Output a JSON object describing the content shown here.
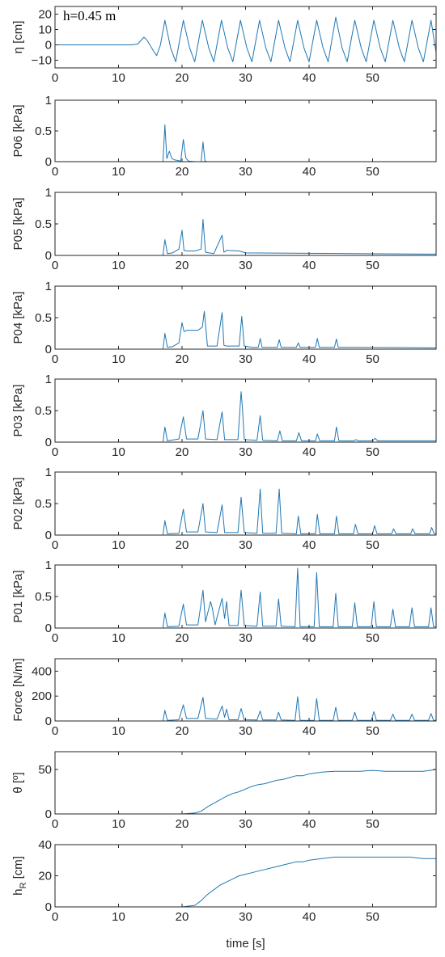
{
  "series_color": "#1f77b4",
  "chart_data": [
    {
      "type": "line",
      "ylabel": "η [cm]",
      "annotation": "h=0.45 m",
      "xlim": [
        0,
        60
      ],
      "ylim": [
        -15,
        25
      ],
      "xticks": [
        0,
        10,
        20,
        30,
        40,
        50
      ],
      "yticks": [
        -10,
        0,
        10,
        20
      ],
      "ytick_labels": [
        "−10",
        "0",
        "10",
        "20"
      ],
      "series": [
        {
          "x": [
            0,
            12,
            13,
            14,
            14.5,
            15.5,
            16,
            16.6,
            17.3,
            18.2,
            19,
            20.2,
            21.2,
            22,
            23.2,
            24.2,
            25,
            26.2,
            27.2,
            28,
            29.2,
            30.2,
            31,
            32.2,
            33.2,
            34,
            35.2,
            36.2,
            37,
            38.2,
            39.2,
            40,
            41.2,
            42.2,
            43,
            44.2,
            45.2,
            46,
            47.2,
            48.2,
            49,
            50.2,
            51.2,
            52,
            53.2,
            54.2,
            55,
            56.2,
            57.2,
            58,
            59.2,
            60
          ],
          "y": [
            0,
            0,
            0.5,
            5,
            3,
            -4,
            -7,
            0,
            16,
            -2,
            -11,
            16,
            -2,
            -11,
            16,
            -2,
            -11,
            16,
            -2,
            -11,
            16,
            -2,
            -11,
            16,
            -2,
            -11,
            16,
            -2,
            -11,
            16,
            -2,
            -11,
            16,
            -2,
            -11,
            18,
            -2,
            -11,
            16,
            -2,
            -11,
            16,
            -2,
            -11,
            16,
            -2,
            -11,
            16,
            -2,
            -11,
            16,
            -5
          ]
        }
      ]
    },
    {
      "type": "line",
      "ylabel": "P06  [kPa]",
      "xlim": [
        0,
        60
      ],
      "ylim": [
        0,
        1
      ],
      "xticks": [
        0,
        10,
        20,
        30,
        40,
        50
      ],
      "yticks": [
        0,
        0.5,
        1
      ],
      "ytick_labels": [
        "0",
        "0.5",
        "1"
      ],
      "series": [
        {
          "x": [
            0,
            17,
            17.3,
            17.6,
            18,
            18.4,
            18.8,
            19.3,
            19.8,
            20.2,
            20.6,
            21,
            22,
            23,
            23.3,
            23.6,
            24,
            60
          ],
          "y": [
            0,
            0,
            0.6,
            0.05,
            0.17,
            0.05,
            0.03,
            0.02,
            0.01,
            0.36,
            0.06,
            0.01,
            0,
            0,
            0.32,
            0.01,
            0,
            0
          ]
        }
      ]
    },
    {
      "type": "line",
      "ylabel": "P05  [kPa]",
      "xlim": [
        0,
        60
      ],
      "ylim": [
        0,
        1
      ],
      "xticks": [
        0,
        10,
        20,
        30,
        40,
        50
      ],
      "yticks": [
        0,
        0.5,
        1
      ],
      "ytick_labels": [
        "0",
        "0.5",
        "1"
      ],
      "series": [
        {
          "x": [
            0,
            17,
            17.3,
            17.7,
            18.5,
            19.5,
            20,
            20.3,
            20.8,
            22,
            23,
            23.3,
            23.7,
            25,
            26.3,
            26.6,
            27,
            29,
            30,
            60
          ],
          "y": [
            0,
            0,
            0.25,
            0.03,
            0.04,
            0.1,
            0.4,
            0.08,
            0.07,
            0.07,
            0.1,
            0.57,
            0.05,
            0.03,
            0.32,
            0.05,
            0.08,
            0.07,
            0.04,
            0.02
          ]
        }
      ]
    },
    {
      "type": "line",
      "ylabel": "P04  [kPa]",
      "xlim": [
        0,
        60
      ],
      "ylim": [
        0,
        1
      ],
      "xticks": [
        0,
        10,
        20,
        30,
        40,
        50
      ],
      "yticks": [
        0,
        0.5,
        1
      ],
      "ytick_labels": [
        "0",
        "0.5",
        "1"
      ],
      "series": [
        {
          "x": [
            0,
            17,
            17.3,
            17.7,
            18.5,
            19.5,
            20,
            20.3,
            20.8,
            22.5,
            23.2,
            23.5,
            24,
            25.5,
            26.3,
            26.6,
            27,
            29,
            29.4,
            29.8,
            31,
            32,
            32.3,
            32.6,
            35,
            35.3,
            35.6,
            38,
            38.3,
            38.6,
            41,
            41.3,
            41.6,
            44,
            44.3,
            44.6,
            48,
            60
          ],
          "y": [
            0,
            0,
            0.25,
            0.03,
            0.04,
            0.1,
            0.42,
            0.28,
            0.3,
            0.3,
            0.35,
            0.6,
            0.05,
            0.05,
            0.58,
            0.06,
            0.05,
            0.05,
            0.52,
            0.05,
            0.03,
            0.03,
            0.17,
            0.03,
            0.03,
            0.15,
            0.03,
            0.03,
            0.1,
            0.03,
            0.03,
            0.17,
            0.03,
            0.03,
            0.16,
            0.03,
            0.03,
            0.02
          ]
        }
      ]
    },
    {
      "type": "line",
      "ylabel": "P03  [kPa]",
      "xlim": [
        0,
        60
      ],
      "ylim": [
        0,
        1
      ],
      "xticks": [
        0,
        10,
        20,
        30,
        40,
        50
      ],
      "yticks": [
        0,
        0.5,
        1
      ],
      "ytick_labels": [
        "0",
        "0.5",
        "1"
      ],
      "series": [
        {
          "x": [
            0,
            17,
            17.3,
            17.7,
            19.5,
            20.2,
            20.7,
            22.5,
            23.3,
            23.7,
            25.5,
            26.3,
            26.7,
            28.8,
            29.3,
            29.5,
            29.8,
            31.8,
            32.3,
            32.7,
            35,
            35.4,
            35.8,
            38,
            38.4,
            38.8,
            41,
            41.3,
            41.7,
            44,
            44.3,
            44.7,
            47,
            47.4,
            47.8,
            50,
            50.4,
            50.8,
            60
          ],
          "y": [
            0,
            0,
            0.24,
            0.02,
            0.05,
            0.4,
            0.05,
            0.05,
            0.5,
            0.05,
            0.04,
            0.48,
            0.04,
            0.04,
            0.8,
            0.55,
            0.04,
            0.03,
            0.42,
            0.03,
            0.02,
            0.18,
            0.02,
            0.02,
            0.15,
            0.02,
            0.02,
            0.13,
            0.02,
            0.02,
            0.24,
            0.02,
            0.02,
            0.04,
            0.02,
            0.02,
            0.06,
            0.02,
            0.02
          ]
        }
      ]
    },
    {
      "type": "line",
      "ylabel": "P02  [kPa]",
      "xlim": [
        0,
        60
      ],
      "ylim": [
        0,
        1
      ],
      "xticks": [
        0,
        10,
        20,
        30,
        40,
        50
      ],
      "yticks": [
        0,
        0.5,
        1
      ],
      "ytick_labels": [
        "0",
        "0.5",
        "1"
      ],
      "series": [
        {
          "x": [
            0,
            17,
            17.3,
            17.7,
            19.5,
            20.2,
            20.7,
            22.5,
            23.3,
            23.7,
            25.5,
            26.3,
            26.7,
            28.8,
            29.3,
            29.8,
            31.8,
            32.3,
            32.7,
            34.8,
            35.3,
            35.7,
            38,
            38.3,
            38.7,
            41,
            41.3,
            41.7,
            44,
            44.3,
            44.7,
            47,
            47.3,
            47.7,
            50,
            50.3,
            50.7,
            53,
            53.3,
            53.7,
            56,
            56.3,
            56.7,
            59,
            59.3,
            59.7,
            60
          ],
          "y": [
            0,
            0,
            0.23,
            0.02,
            0.03,
            0.41,
            0.05,
            0.05,
            0.5,
            0.05,
            0.04,
            0.48,
            0.04,
            0.04,
            0.6,
            0.04,
            0.03,
            0.73,
            0.03,
            0.03,
            0.73,
            0.03,
            0.02,
            0.3,
            0.02,
            0.02,
            0.33,
            0.02,
            0.02,
            0.3,
            0.02,
            0.02,
            0.17,
            0.02,
            0.02,
            0.15,
            0.02,
            0.02,
            0.1,
            0.02,
            0.02,
            0.1,
            0.02,
            0.02,
            0.12,
            0.02,
            0.02
          ]
        }
      ]
    },
    {
      "type": "line",
      "ylabel": "P01  [kPa]",
      "xlim": [
        0,
        60
      ],
      "ylim": [
        0,
        1
      ],
      "xticks": [
        0,
        10,
        20,
        30,
        40,
        50
      ],
      "yticks": [
        0,
        0.5,
        1
      ],
      "ytick_labels": [
        "0",
        "0.5",
        "1"
      ],
      "series": [
        {
          "x": [
            0,
            17,
            17.3,
            17.7,
            19.5,
            20.2,
            20.7,
            22.5,
            23.3,
            23.7,
            24.5,
            24.8,
            25.2,
            26.3,
            26.7,
            27,
            27.4,
            28.8,
            29.3,
            29.8,
            31.8,
            32.3,
            32.7,
            34.8,
            35.2,
            35.6,
            37.8,
            38.2,
            38.6,
            40.8,
            41.2,
            41.6,
            43.8,
            44.2,
            44.6,
            46.8,
            47.2,
            47.6,
            49.8,
            50.2,
            50.6,
            52.8,
            53.2,
            53.6,
            55.8,
            56.2,
            56.6,
            58.8,
            59.2,
            59.6,
            60
          ],
          "y": [
            0,
            0,
            0.24,
            0.02,
            0.03,
            0.38,
            0.05,
            0.05,
            0.6,
            0.1,
            0.42,
            0.3,
            0.05,
            0.47,
            0.15,
            0.42,
            0.04,
            0.04,
            0.6,
            0.04,
            0.03,
            0.57,
            0.03,
            0.03,
            0.46,
            0.03,
            0.02,
            0.95,
            0.02,
            0.02,
            0.88,
            0.02,
            0.02,
            0.55,
            0.02,
            0.02,
            0.4,
            0.02,
            0.02,
            0.42,
            0.02,
            0.02,
            0.3,
            0.02,
            0.02,
            0.32,
            0.02,
            0.02,
            0.32,
            0.02,
            0.02
          ]
        }
      ]
    },
    {
      "type": "line",
      "ylabel": "Force [N/m]",
      "xlim": [
        0,
        60
      ],
      "ylim": [
        0,
        500
      ],
      "xticks": [
        0,
        10,
        20,
        30,
        40,
        50
      ],
      "yticks": [
        0,
        200,
        400
      ],
      "ytick_labels": [
        "0",
        "200",
        "400"
      ],
      "series": [
        {
          "x": [
            0,
            17,
            17.3,
            17.7,
            19.5,
            20.2,
            20.7,
            22.5,
            23.3,
            23.7,
            25.5,
            26.3,
            26.7,
            27,
            27.4,
            28.8,
            29.3,
            29.8,
            31.8,
            32.3,
            32.7,
            34.8,
            35.2,
            35.6,
            37.8,
            38.2,
            38.6,
            40.8,
            41.2,
            41.6,
            43.8,
            44.2,
            44.6,
            46.8,
            47.2,
            47.6,
            49.8,
            50.2,
            50.6,
            52.8,
            53.2,
            53.6,
            55.8,
            56.2,
            56.6,
            58.8,
            59.2,
            59.6,
            60
          ],
          "y": [
            0,
            0,
            85,
            5,
            10,
            130,
            20,
            20,
            190,
            20,
            15,
            120,
            30,
            95,
            10,
            10,
            100,
            10,
            8,
            80,
            8,
            8,
            70,
            8,
            5,
            195,
            5,
            5,
            180,
            5,
            5,
            110,
            5,
            5,
            70,
            5,
            5,
            75,
            5,
            5,
            55,
            5,
            5,
            55,
            5,
            5,
            60,
            5,
            5
          ]
        }
      ]
    },
    {
      "type": "line",
      "ylabel": "θ [º]",
      "xlim": [
        0,
        60
      ],
      "ylim": [
        0,
        70
      ],
      "xticks": [
        0,
        10,
        20,
        30,
        40,
        50
      ],
      "yticks": [
        0,
        50
      ],
      "ytick_labels": [
        "0",
        "50"
      ],
      "series": [
        {
          "x": [
            0,
            20,
            22,
            23,
            24,
            25,
            26,
            27,
            28,
            29,
            30,
            31,
            32,
            33,
            34,
            35,
            36,
            37,
            38,
            39,
            40,
            42,
            44,
            46,
            48,
            50,
            52,
            54,
            56,
            58,
            60
          ],
          "y": [
            0,
            0,
            1,
            3,
            8,
            12,
            16,
            20,
            23,
            25,
            28,
            31,
            33,
            34,
            36,
            38,
            39,
            41,
            43,
            43,
            45,
            47,
            48,
            48,
            48,
            49,
            48,
            48,
            48,
            48,
            50
          ]
        }
      ]
    },
    {
      "type": "line",
      "ylabel": "h_R [cm]",
      "ylabel_main": "h",
      "ylabel_sub": "R",
      "ylabel_tail": " [cm]",
      "xlabel": "time [s]",
      "xlim": [
        0,
        60
      ],
      "ylim": [
        0,
        40
      ],
      "xticks": [
        0,
        10,
        20,
        30,
        40,
        50
      ],
      "yticks": [
        0,
        20,
        40
      ],
      "ytick_labels": [
        "0",
        "20",
        "40"
      ],
      "series": [
        {
          "x": [
            0,
            20,
            22,
            23,
            24,
            25,
            26,
            27,
            28,
            29,
            30,
            31,
            32,
            33,
            34,
            35,
            36,
            37,
            38,
            39,
            40,
            42,
            44,
            46,
            48,
            50,
            52,
            54,
            56,
            58,
            60
          ],
          "y": [
            0,
            0,
            1,
            4,
            8,
            11,
            14,
            16,
            18,
            20,
            21,
            22,
            23,
            24,
            25,
            26,
            27,
            28,
            29,
            29,
            30,
            31,
            32,
            32,
            32,
            32,
            32,
            32,
            32,
            31,
            31
          ]
        }
      ]
    }
  ]
}
